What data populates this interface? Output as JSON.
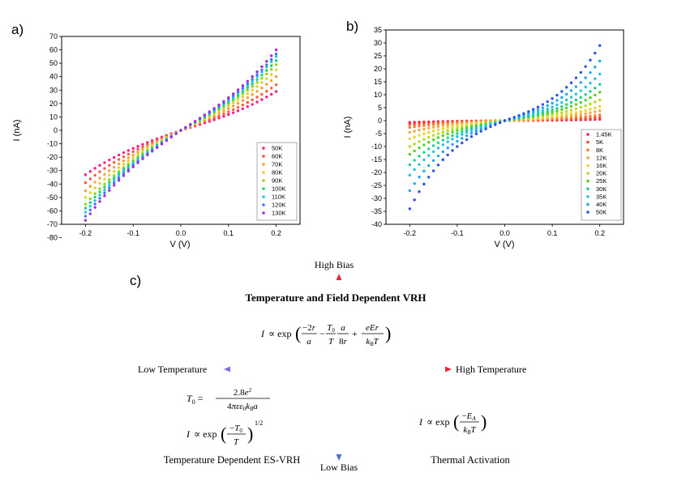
{
  "chart_data": [
    {
      "type": "scatter",
      "panel_label": "a)",
      "xlabel": "V (V)",
      "ylabel": "I (nA)",
      "xlim": [
        -0.25,
        0.25
      ],
      "ylim": [
        -70,
        70
      ],
      "xticks": [
        "-0.2",
        "-0.1",
        "0.0",
        "0.1",
        "0.2"
      ],
      "yticks": [
        "-80",
        "-70",
        "-60",
        "-50",
        "-40",
        "-30",
        "-20",
        "-10",
        "0",
        "10",
        "20",
        "30",
        "40",
        "50",
        "60",
        "70"
      ],
      "legend_position": "bottom-right",
      "x_range": [
        -0.2,
        0.2
      ],
      "series": [
        {
          "name": "50K",
          "color": "#ff1a8c",
          "i_at_neg": -33,
          "i_at_pos": 29
        },
        {
          "name": "60K",
          "color": "#ff5a3a",
          "i_at_neg": -39,
          "i_at_pos": 34
        },
        {
          "name": "70K",
          "color": "#f5a03a",
          "i_at_neg": -45,
          "i_at_pos": 40
        },
        {
          "name": "80K",
          "color": "#e6cf2a",
          "i_at_neg": -50,
          "i_at_pos": 45
        },
        {
          "name": "90K",
          "color": "#8fd61c",
          "i_at_neg": -55,
          "i_at_pos": 49
        },
        {
          "name": "100K",
          "color": "#1fd36a",
          "i_at_neg": -58,
          "i_at_pos": 52
        },
        {
          "name": "110K",
          "color": "#1ec8e6",
          "i_at_neg": -61,
          "i_at_pos": 55
        },
        {
          "name": "120K",
          "color": "#3c78ff",
          "i_at_neg": -64,
          "i_at_pos": 57
        },
        {
          "name": "130K",
          "color": "#a82cd6",
          "i_at_neg": -67,
          "i_at_pos": 60
        }
      ]
    },
    {
      "type": "scatter",
      "panel_label": "b)",
      "xlabel": "V (V)",
      "ylabel": "I (nA)",
      "xlim": [
        -0.25,
        0.25
      ],
      "ylim": [
        -40,
        35
      ],
      "xticks": [
        "-0.2",
        "-0.1",
        "0.0",
        "0.1",
        "0.2"
      ],
      "yticks": [
        "-40",
        "-35",
        "-30",
        "-25",
        "-20",
        "-15",
        "-10",
        "-5",
        "0",
        "5",
        "10",
        "15",
        "20",
        "25",
        "30",
        "35"
      ],
      "legend_position": "bottom-right",
      "x_range": [
        -0.2,
        0.2
      ],
      "series": [
        {
          "name": "1.45K",
          "color": "#ff1a4a",
          "i_at_neg": -0.7,
          "i_at_pos": 0.5
        },
        {
          "name": "5K",
          "color": "#ff4a2a",
          "i_at_neg": -1.5,
          "i_at_pos": 1.2
        },
        {
          "name": "8K",
          "color": "#ff7a2a",
          "i_at_neg": -2.6,
          "i_at_pos": 2.2
        },
        {
          "name": "12K",
          "color": "#f5a83a",
          "i_at_neg": -4.5,
          "i_at_pos": 3.8
        },
        {
          "name": "16K",
          "color": "#eed22a",
          "i_at_neg": -7,
          "i_at_pos": 5.5
        },
        {
          "name": "20K",
          "color": "#b4dc1e",
          "i_at_neg": -10,
          "i_at_pos": 8
        },
        {
          "name": "25K",
          "color": "#52d420",
          "i_at_neg": -13,
          "i_at_pos": 11
        },
        {
          "name": "30K",
          "color": "#1ed28a",
          "i_at_neg": -17,
          "i_at_pos": 14
        },
        {
          "name": "35K",
          "color": "#1ec8dc",
          "i_at_neg": -21,
          "i_at_pos": 18
        },
        {
          "name": "40K",
          "color": "#22a8f0",
          "i_at_neg": -27,
          "i_at_pos": 23
        },
        {
          "name": "50K",
          "color": "#2f52e6",
          "i_at_neg": -34,
          "i_at_pos": 29
        }
      ]
    }
  ],
  "diagram": {
    "panel_label": "c)",
    "high_bias": "High Bias",
    "low_bias": "Low Bias",
    "low_temperature": "Low Temperature",
    "high_temperature": "High Temperature",
    "title_top": "Temperature and Field Dependent VRH",
    "label_bottom_left": "Temperature Dependent ES-VRH",
    "label_bottom_right": "Thermal Activation",
    "color_red": "#e8283c",
    "color_blue": "#4a72c8"
  }
}
